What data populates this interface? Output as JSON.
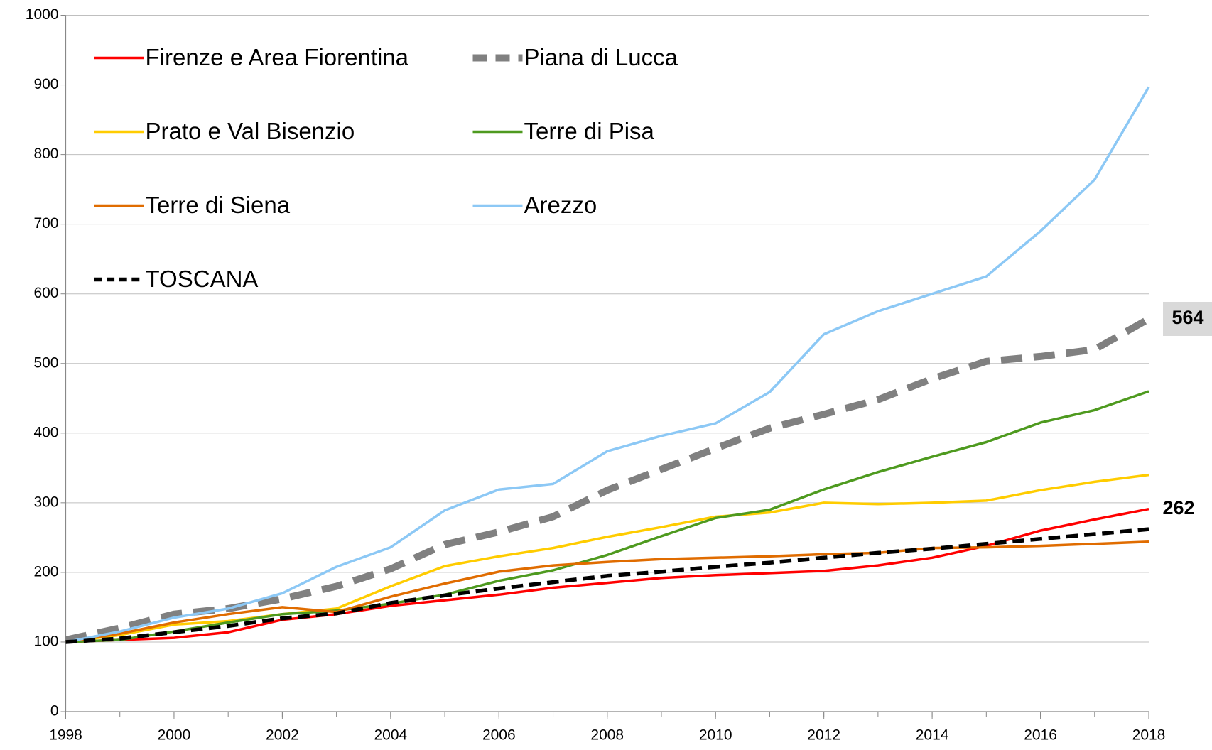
{
  "chart_data": {
    "type": "line",
    "x": [
      1998,
      1999,
      2000,
      2001,
      2002,
      2003,
      2004,
      2005,
      2006,
      2007,
      2008,
      2009,
      2010,
      2011,
      2012,
      2013,
      2014,
      2015,
      2016,
      2017,
      2018
    ],
    "xlim": [
      1998,
      2018
    ],
    "xticks": [
      1998,
      2000,
      2002,
      2004,
      2006,
      2008,
      2010,
      2012,
      2014,
      2016,
      2018
    ],
    "ylim": [
      0,
      1000
    ],
    "yticks": [
      0,
      100,
      200,
      300,
      400,
      500,
      600,
      700,
      800,
      900,
      1000
    ],
    "grid": true,
    "legend": "upper left",
    "series": [
      {
        "name": "Firenze e Area Fiorentina",
        "color": "#ff0000",
        "width": 3.5,
        "dash": false,
        "values": [
          100,
          103,
          106,
          114,
          132,
          140,
          152,
          160,
          168,
          178,
          185,
          192,
          196,
          199,
          202,
          210,
          221,
          238,
          260,
          276,
          291
        ]
      },
      {
        "name": "Piana di Lucca",
        "color": "#808080",
        "width": 10,
        "dash": true,
        "label_last": true,
        "label_box": "#d9d9d9",
        "values": [
          103,
          120,
          140,
          148,
          162,
          180,
          205,
          240,
          258,
          280,
          318,
          348,
          378,
          407,
          427,
          448,
          478,
          503,
          510,
          520,
          564
        ]
      },
      {
        "name": "Prato e Val Bisenzio",
        "color": "#ffcc00",
        "width": 3.5,
        "dash": false,
        "values": [
          100,
          110,
          125,
          130,
          140,
          148,
          180,
          209,
          223,
          235,
          251,
          265,
          280,
          286,
          300,
          298,
          300,
          303,
          318,
          330,
          340
        ]
      },
      {
        "name": "Terre di Pisa",
        "color": "#4e9a1f",
        "width": 3.5,
        "dash": false,
        "values": [
          100,
          103,
          115,
          128,
          140,
          145,
          155,
          168,
          188,
          203,
          225,
          252,
          278,
          290,
          319,
          344,
          366,
          387,
          415,
          433,
          460
        ]
      },
      {
        "name": "Terre di Siena",
        "color": "#e06c00",
        "width": 3.5,
        "dash": false,
        "values": [
          100,
          112,
          128,
          140,
          150,
          143,
          165,
          184,
          201,
          210,
          215,
          219,
          221,
          223,
          226,
          228,
          235,
          236,
          238,
          241,
          244
        ]
      },
      {
        "name": "Arezzo",
        "color": "#8cc8f5",
        "width": 3.5,
        "dash": false,
        "values": [
          100,
          115,
          135,
          148,
          170,
          208,
          236,
          289,
          319,
          327,
          374,
          396,
          414,
          459,
          542,
          575,
          600,
          625,
          690,
          764,
          897
        ]
      },
      {
        "name": "TOSCANA",
        "color": "#000000",
        "width": 5.5,
        "dash": true,
        "label_last": true,
        "values": [
          100,
          105,
          114,
          123,
          134,
          141,
          156,
          167,
          177,
          186,
          195,
          201,
          208,
          214,
          221,
          228,
          234,
          241,
          248,
          255,
          262
        ]
      }
    ]
  }
}
